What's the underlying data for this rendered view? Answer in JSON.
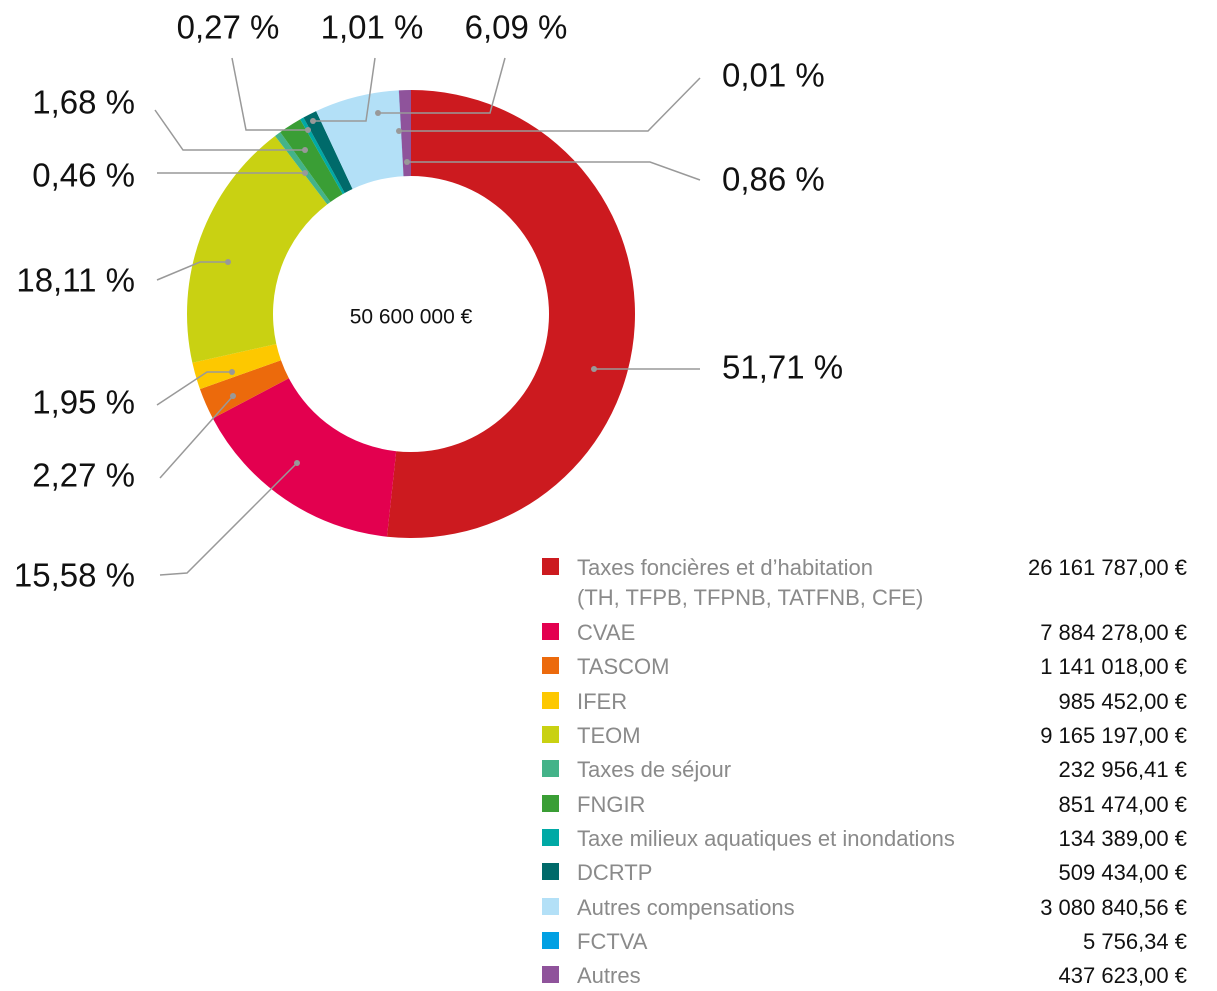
{
  "chart_data": {
    "type": "donut",
    "center_label": "50 600 000 €",
    "categories": [
      "Taxes foncières et d’habitation\n(TH, TFPB, TFPNB, TATFNB, CFE)",
      "CVAE",
      "TASCOM",
      "IFER",
      "TEOM",
      "Taxes de séjour",
      "FNGIR",
      "Taxe milieux aquatiques et inondations",
      "DCRTP",
      "Autres compensations",
      "FCTVA",
      "Autres"
    ],
    "values": [
      51.71,
      15.58,
      2.27,
      1.95,
      18.11,
      0.46,
      1.68,
      0.27,
      1.01,
      6.09,
      0.01,
      0.86
    ],
    "value_labels": [
      "51,71 %",
      "15,58 %",
      "2,27 %",
      "1,95 %",
      "18,11 %",
      "0,46 %",
      "1,68 %",
      "0,27 %",
      "1,01 %",
      "6,09 %",
      "0,01 %",
      "0,86 %"
    ],
    "amount_labels": [
      "26 161 787,00 €",
      "7 884 278,00 €",
      "1 141 018,00 €",
      "985 452,00 €",
      "9 165 197,00 €",
      "232 956,41 €",
      "851 474,00 €",
      "134 389,00 €",
      "509 434,00 €",
      "3 080 840,56 €",
      "5 756,34 €",
      "437 623,00 €"
    ],
    "colors": [
      "#cc1a1f",
      "#e3004f",
      "#ec6a0c",
      "#fdc800",
      "#c9d112",
      "#44b389",
      "#3a9e35",
      "#00a9a5",
      "#006a6a",
      "#b3e0f7",
      "#00a0e3",
      "#8f539b"
    ]
  }
}
